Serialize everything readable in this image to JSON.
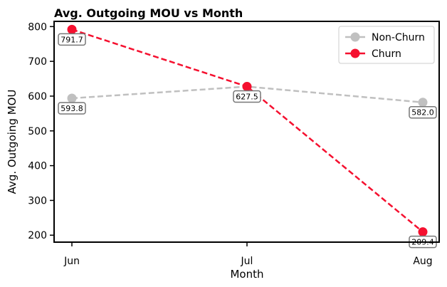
{
  "chart_data": {
    "type": "line",
    "title": "Avg. Outgoing MOU vs Month",
    "xlabel": "Month",
    "ylabel": "Avg. Outgoing MOU",
    "categories": [
      "Jun",
      "Jul",
      "Aug"
    ],
    "ylim": [
      180,
      815
    ],
    "yticks": [
      200,
      300,
      400,
      500,
      600,
      700,
      800
    ],
    "grid": false,
    "legend_position": "top-right",
    "series": [
      {
        "name": "Non-Churn",
        "values": [
          593.8,
          627.5,
          582.0
        ],
        "labels": [
          "593.8",
          "627.5",
          "582.0"
        ],
        "color": "#c0c0c0",
        "line_style": "dashed"
      },
      {
        "name": "Churn",
        "values": [
          791.7,
          627.5,
          209.4
        ],
        "labels": [
          "791.7",
          "627.5",
          "209.4"
        ],
        "color": "#f5102f",
        "line_style": "dashed"
      }
    ]
  }
}
